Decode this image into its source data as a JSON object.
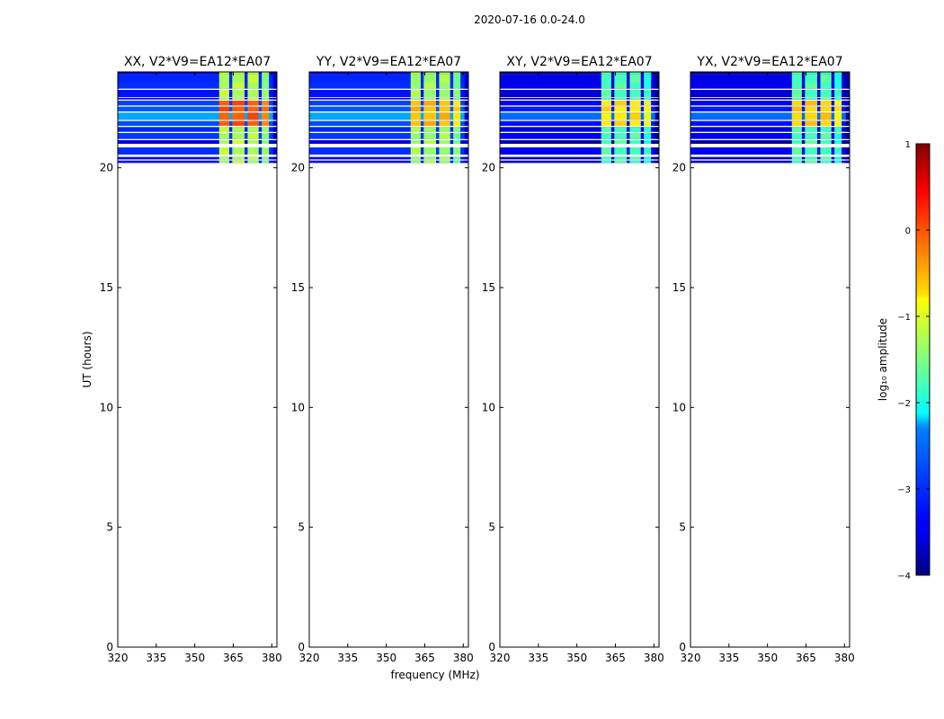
{
  "figure": {
    "suptitle": "2020-07-16 0.0-24.0",
    "xlabel": "frequency (MHz)",
    "ylabel": "UT (hours)"
  },
  "chart_data": {
    "type": "heatmap",
    "x_range": [
      320,
      382
    ],
    "y_range": [
      0,
      24
    ],
    "x_ticks": [
      320,
      335,
      350,
      365,
      380
    ],
    "y_ticks": [
      0,
      5,
      10,
      15,
      20
    ],
    "data_time_extent": [
      20.2,
      24.0
    ],
    "rfi_band_mhz": [
      359.5,
      379.5
    ],
    "rfi_channel_gaps_mhz": [
      364,
      370,
      375.5
    ],
    "panels": [
      {
        "title": "XX, V2*V9=EA12*EA07",
        "background_log_amp": -3.3,
        "band_log_amp": -1.3,
        "bright_log_amp": -0.1
      },
      {
        "title": "YY, V2*V9=EA12*EA07",
        "background_log_amp": -3.3,
        "band_log_amp": -1.4,
        "bright_log_amp": -0.6
      },
      {
        "title": "XY, V2*V9=EA12*EA07",
        "background_log_amp": -3.6,
        "band_log_amp": -1.8,
        "bright_log_amp": -0.8
      },
      {
        "title": "YX, V2*V9=EA12*EA07",
        "background_log_amp": -3.6,
        "band_log_amp": -1.8,
        "bright_log_amp": -0.7
      }
    ],
    "colorbar": {
      "label": "log₁₀ amplitude",
      "range": [
        -4,
        1
      ],
      "ticks": [
        1,
        0,
        -1,
        -2,
        -3,
        -4
      ],
      "tick_labels": [
        "1",
        "0",
        "−1",
        "−2",
        "−3",
        "−4"
      ],
      "colormap": "jet"
    }
  }
}
